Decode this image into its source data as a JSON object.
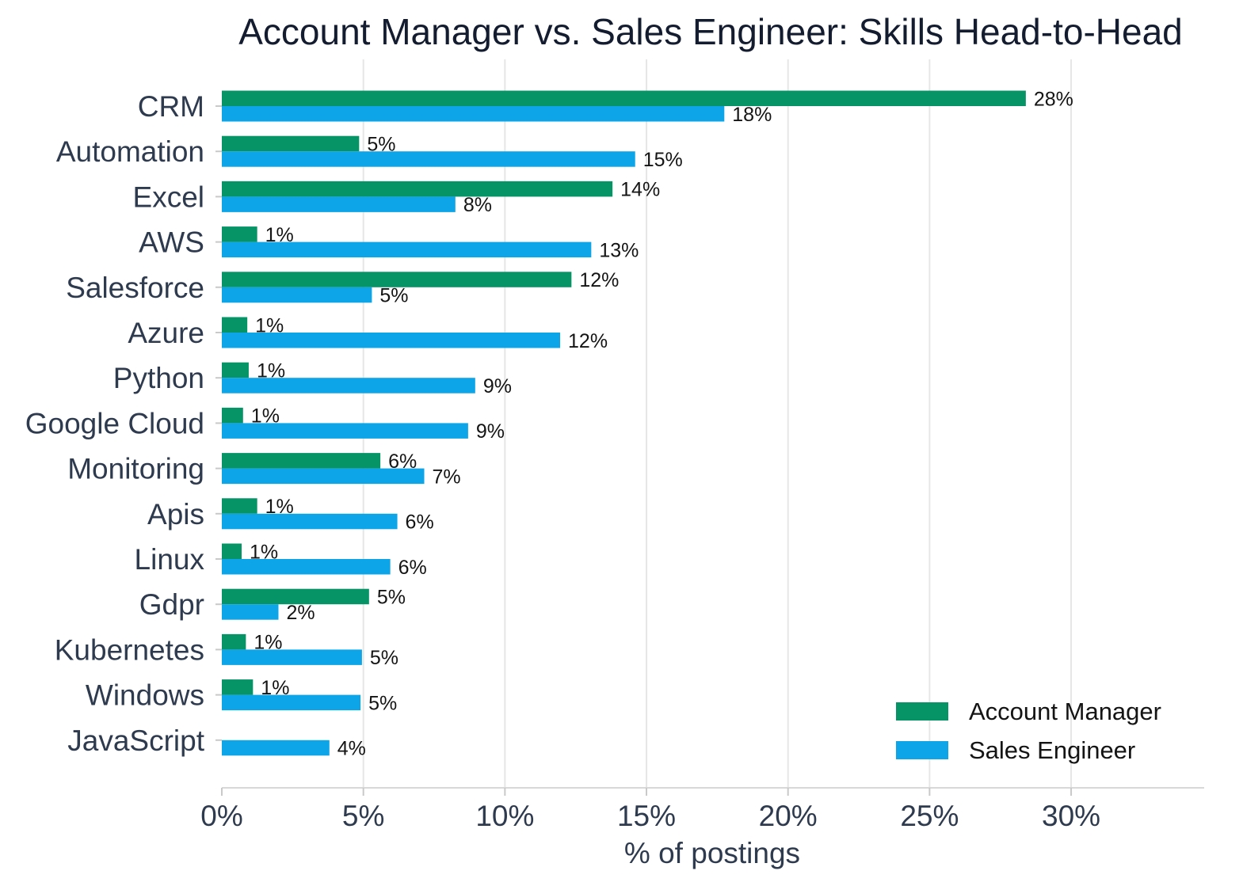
{
  "chart_data": {
    "type": "bar",
    "orientation": "horizontal",
    "title": "Account Manager vs. Sales Engineer: Skills Head-to-Head",
    "xlabel": "% of postings",
    "ylabel": "",
    "xlim": [
      0,
      34.7
    ],
    "xticks": [
      0,
      5,
      10,
      15,
      20,
      25,
      30
    ],
    "xtick_labels": [
      "0%",
      "5%",
      "10%",
      "15%",
      "20%",
      "25%",
      "30%"
    ],
    "grid": "vertical",
    "legend_position": "bottom-right",
    "categories": [
      "CRM",
      "Automation",
      "Excel",
      "AWS",
      "Salesforce",
      "Azure",
      "Python",
      "Google Cloud",
      "Monitoring",
      "Apis",
      "Linux",
      "Gdpr",
      "Kubernetes",
      "Windows",
      "JavaScript"
    ],
    "series": [
      {
        "name": "Account Manager",
        "color": "#069466",
        "values": [
          28.4,
          4.85,
          13.8,
          1.25,
          12.35,
          0.9,
          0.95,
          0.75,
          5.6,
          1.25,
          0.7,
          5.2,
          0.85,
          1.1,
          0
        ],
        "labels": [
          "28%",
          "5%",
          "14%",
          "1%",
          "12%",
          "1%",
          "1%",
          "1%",
          "6%",
          "1%",
          "1%",
          "5%",
          "1%",
          "1%",
          ""
        ]
      },
      {
        "name": "Sales Engineer",
        "color": "#0ea5e8",
        "values": [
          17.75,
          14.6,
          8.25,
          13.05,
          5.3,
          11.95,
          8.95,
          8.7,
          7.15,
          6.2,
          5.95,
          2.0,
          4.95,
          4.9,
          3.8
        ],
        "labels": [
          "18%",
          "15%",
          "8%",
          "13%",
          "5%",
          "12%",
          "9%",
          "9%",
          "7%",
          "6%",
          "6%",
          "2%",
          "5%",
          "5%",
          "4%"
        ]
      }
    ]
  }
}
